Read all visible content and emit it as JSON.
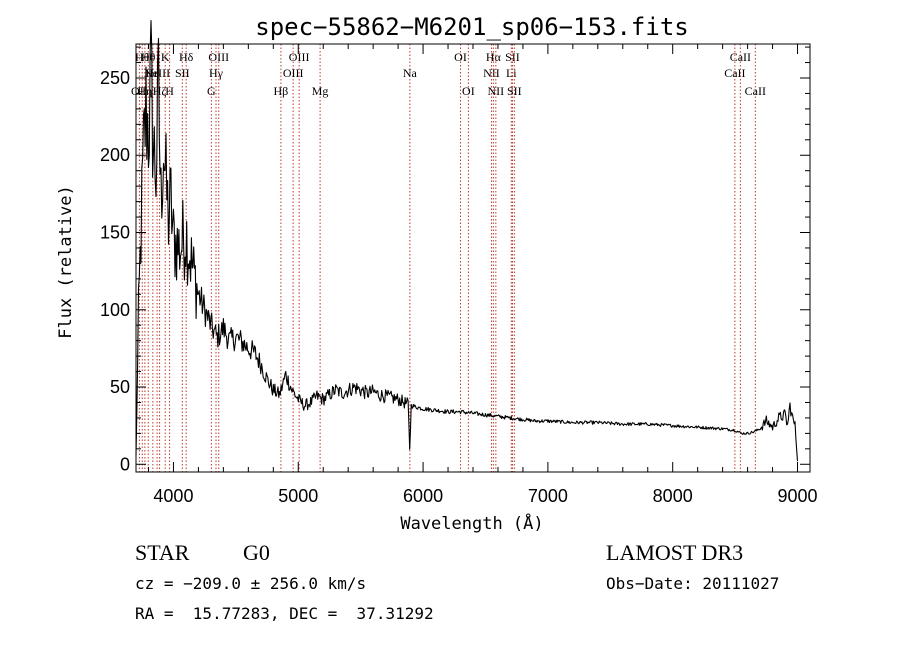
{
  "chart_data": {
    "type": "line",
    "title": "spec−55862−M6201_sp06−153.fits",
    "xlabel": "Wavelength (Å)",
    "ylabel": "Flux (relative)",
    "xlim": [
      3700,
      9100
    ],
    "ylim": [
      -5,
      272
    ],
    "xticks": [
      4000,
      5000,
      6000,
      7000,
      8000,
      9000
    ],
    "yticks": [
      0,
      50,
      100,
      150,
      200,
      250
    ],
    "series": [
      {
        "name": "flux",
        "x": [
          3700,
          3720,
          3740,
          3760,
          3780,
          3800,
          3820,
          3840,
          3860,
          3880,
          3900,
          3920,
          3940,
          3960,
          3980,
          4000,
          4050,
          4100,
          4150,
          4200,
          4250,
          4300,
          4350,
          4400,
          4450,
          4500,
          4550,
          4600,
          4650,
          4700,
          4750,
          4800,
          4850,
          4900,
          4950,
          5000,
          5050,
          5100,
          5150,
          5200,
          5250,
          5300,
          5350,
          5400,
          5450,
          5500,
          5550,
          5600,
          5650,
          5700,
          5750,
          5800,
          5850,
          5880,
          5893,
          5905,
          5950,
          6000,
          6100,
          6200,
          6300,
          6400,
          6500,
          6600,
          6700,
          6800,
          6900,
          7000,
          7200,
          7400,
          7600,
          7800,
          8000,
          8200,
          8400,
          8500,
          8550,
          8600,
          8650,
          8700,
          8750,
          8800,
          8850,
          8900,
          8920,
          8940,
          8960,
          8980,
          9000
        ],
        "y": [
          5,
          95,
          150,
          200,
          230,
          215,
          250,
          205,
          190,
          240,
          170,
          210,
          180,
          160,
          170,
          145,
          140,
          150,
          128,
          110,
          100,
          90,
          82,
          88,
          80,
          82,
          79,
          75,
          72,
          65,
          55,
          48,
          45,
          58,
          48,
          42,
          38,
          40,
          44,
          42,
          45,
          48,
          46,
          48,
          50,
          48,
          46,
          47,
          45,
          44,
          43,
          42,
          40,
          39,
          10,
          38,
          37,
          36,
          35,
          34,
          34,
          33,
          32,
          31,
          30,
          29,
          28,
          28,
          27,
          27,
          26,
          26,
          25,
          24,
          23,
          22,
          20,
          20,
          21,
          23,
          28,
          24,
          30,
          32,
          25,
          38,
          30,
          25,
          2
        ]
      }
    ],
    "spectral_lines": [
      {
        "wl": 3727,
        "label": "OII",
        "row": 3
      },
      {
        "wl": 3750,
        "label": "Hθ",
        "row": 1
      },
      {
        "wl": 3771,
        "label": "Hη",
        "row": 3
      },
      {
        "wl": 3798,
        "label": "Hθ",
        "row": 1
      },
      {
        "wl": 3835,
        "label": "Hη",
        "row": 2
      },
      {
        "wl": 3869,
        "label": "NeIII",
        "row": 2
      },
      {
        "wl": 3889,
        "label": "Hζ",
        "row": 3
      },
      {
        "wl": 3934,
        "label": "K",
        "row": 1
      },
      {
        "wl": 3969,
        "label": "H",
        "row": 3
      },
      {
        "wl": 4071,
        "label": "SII",
        "row": 2
      },
      {
        "wl": 4102,
        "label": "Hδ",
        "row": 1
      },
      {
        "wl": 4304,
        "label": "G",
        "row": 3
      },
      {
        "wl": 4341,
        "label": "Hγ",
        "row": 2
      },
      {
        "wl": 4363,
        "label": "OIII",
        "row": 1
      },
      {
        "wl": 4861,
        "label": "Hβ",
        "row": 3
      },
      {
        "wl": 4959,
        "label": "OIII",
        "row": 2
      },
      {
        "wl": 5007,
        "label": "OIII",
        "row": 1
      },
      {
        "wl": 5175,
        "label": "Mg",
        "row": 3
      },
      {
        "wl": 5894,
        "label": "Na",
        "row": 2
      },
      {
        "wl": 6300,
        "label": "OI",
        "row": 1
      },
      {
        "wl": 6363,
        "label": "OI",
        "row": 3
      },
      {
        "wl": 6548,
        "label": "NII",
        "row": 2
      },
      {
        "wl": 6563,
        "label": "Hα",
        "row": 1
      },
      {
        "wl": 6583,
        "label": "NII",
        "row": 3
      },
      {
        "wl": 6707,
        "label": "Li",
        "row": 2
      },
      {
        "wl": 6716,
        "label": "SII",
        "row": 1
      },
      {
        "wl": 6731,
        "label": "SII",
        "row": 3
      },
      {
        "wl": 8498,
        "label": "CaII",
        "row": 2
      },
      {
        "wl": 8542,
        "label": "CaII",
        "row": 1
      },
      {
        "wl": 8662,
        "label": "CaII",
        "row": 3
      }
    ]
  },
  "info": {
    "class": "STAR",
    "subclass": "G0",
    "survey": "LAMOST DR3",
    "velocity": "cz = −209.0 ± 256.0 km/s",
    "obs_date": "Obs−Date: 20111027",
    "coords": "RA =  15.77283, DEC =  37.31292"
  },
  "colors": {
    "line_marker": "#c0392b",
    "spectrum": "#000000",
    "axes": "#000000"
  }
}
